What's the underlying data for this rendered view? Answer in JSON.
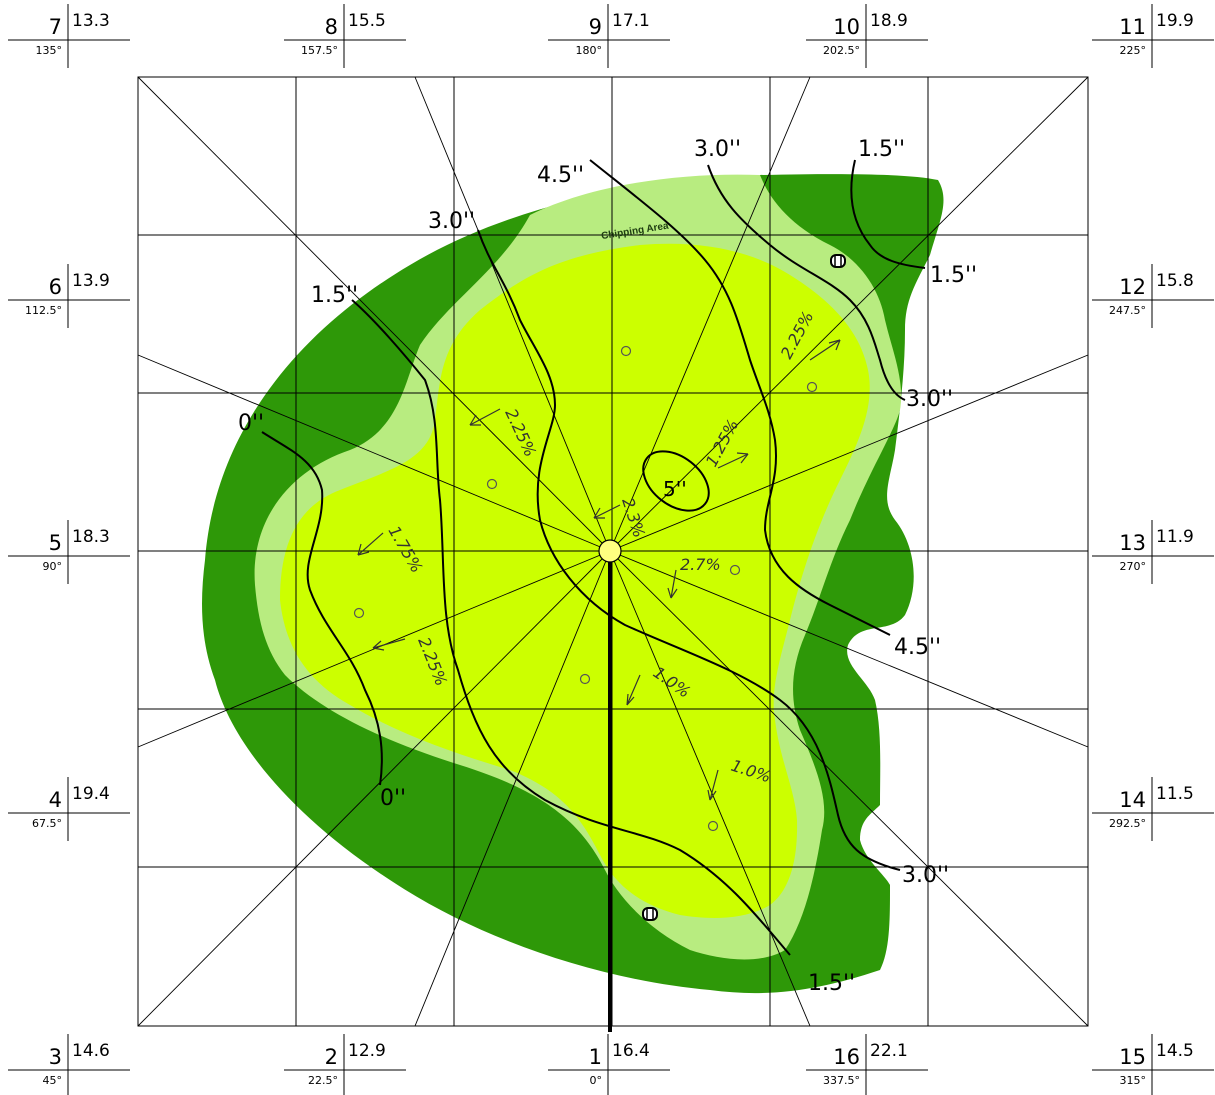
{
  "colors": {
    "rough": "#2e9808",
    "fringe": "#b8ec80",
    "green": "#ccff00",
    "line": "#000000"
  },
  "stations": [
    {
      "id": "7",
      "value": "13.3",
      "angle": "135°"
    },
    {
      "id": "8",
      "value": "15.5",
      "angle": "157.5°"
    },
    {
      "id": "9",
      "value": "17.1",
      "angle": "180°"
    },
    {
      "id": "10",
      "value": "18.9",
      "angle": "202.5°"
    },
    {
      "id": "11",
      "value": "19.9",
      "angle": "225°"
    },
    {
      "id": "6",
      "value": "13.9",
      "angle": "112.5°"
    },
    {
      "id": "12",
      "value": "15.8",
      "angle": "247.5°"
    },
    {
      "id": "5",
      "value": "18.3",
      "angle": "90°"
    },
    {
      "id": "13",
      "value": "11.9",
      "angle": "270°"
    },
    {
      "id": "4",
      "value": "19.4",
      "angle": "67.5°"
    },
    {
      "id": "14",
      "value": "11.5",
      "angle": "292.5°"
    },
    {
      "id": "3",
      "value": "14.6",
      "angle": "45°"
    },
    {
      "id": "2",
      "value": "12.9",
      "angle": "22.5°"
    },
    {
      "id": "1",
      "value": "16.4",
      "angle": "0°"
    },
    {
      "id": "16",
      "value": "22.1",
      "angle": "337.5°"
    },
    {
      "id": "15",
      "value": "14.5",
      "angle": "315°"
    }
  ],
  "contour_labels": [
    "4.5''",
    "3.0''",
    "1.5''",
    "3.0''",
    "1.5''",
    "1.5''",
    "0''",
    "3.0''",
    "4.5''",
    "0''",
    "3.0''",
    "1.5''"
  ],
  "center_label": "5''",
  "slope_labels": [
    "2.25%",
    "2.25%",
    "1.25%",
    "2.3%",
    "1.75%",
    "2.7%",
    "2.25%",
    "1.0%",
    "1.0%"
  ],
  "chipping_area": "Chipping Area"
}
